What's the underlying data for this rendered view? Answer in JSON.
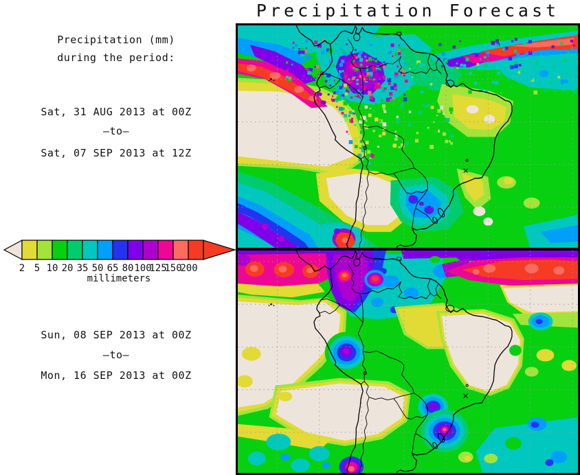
{
  "title": "Precipitation Forecast",
  "info": {
    "line1": "Precipitation (mm)",
    "line2": "during the period:"
  },
  "period1": {
    "start": "Sat, 31 AUG 2013 at 00Z",
    "separator": "–to–",
    "end": "Sat, 07 SEP 2013 at 12Z"
  },
  "period2": {
    "start": "Sun, 08 SEP 2013 at 00Z",
    "separator": "–to–",
    "end": "Mon, 16 SEP 2013 at 00Z"
  },
  "legend": {
    "unit_label": "millimeters",
    "ticks": [
      "2",
      "5",
      "10",
      "20",
      "35",
      "50",
      "65",
      "80",
      "100",
      "125",
      "150",
      "200"
    ],
    "colors": [
      "#EDE5DC",
      "#E2DA35",
      "#A2E43C",
      "#07D011",
      "#00CC6E",
      "#00C8BE",
      "#009FFB",
      "#2433F0",
      "#7F00E8",
      "#AD00CF",
      "#EC0795",
      "#FB6B60",
      "#F63B25"
    ]
  }
}
